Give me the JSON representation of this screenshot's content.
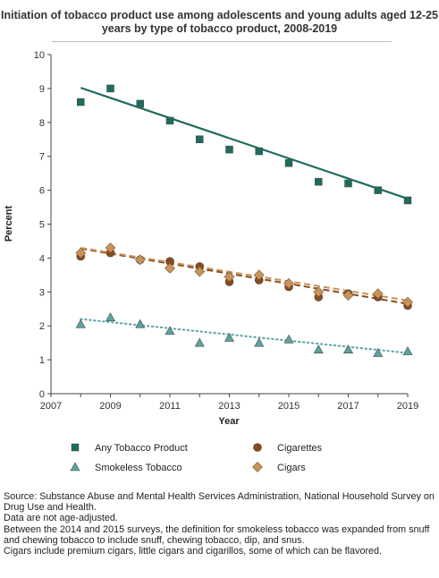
{
  "chart_data": {
    "type": "scatter",
    "title": "Initiation of tobacco product use among adolescents and young adults aged 12-25 years by type of tobacco product, 2008-2019",
    "xlabel": "Year",
    "ylabel": "Percent",
    "xlim": [
      2007,
      2019
    ],
    "ylim": [
      0,
      10
    ],
    "x_ticks": [
      "2007",
      "2009",
      "2011",
      "2013",
      "2015",
      "2017",
      "2019"
    ],
    "y_ticks": [
      "0",
      "1",
      "2",
      "3",
      "4",
      "5",
      "6",
      "7",
      "8",
      "9",
      "10"
    ],
    "x": [
      2008,
      2009,
      2010,
      2011,
      2012,
      2013,
      2014,
      2015,
      2016,
      2017,
      2018,
      2019
    ],
    "legend_placement": "bottom",
    "grid": false,
    "series": [
      {
        "name": "Any Tobacco Product",
        "marker": "square",
        "color": "#1f6b5e",
        "values": [
          8.6,
          9.0,
          8.55,
          8.05,
          7.5,
          7.2,
          7.15,
          6.8,
          6.25,
          6.2,
          6.0,
          5.7
        ],
        "trend": {
          "style": "solid",
          "start": 9.02,
          "end": 5.75
        }
      },
      {
        "name": "Cigarettes",
        "marker": "circle",
        "color": "#8b4a1c",
        "values": [
          4.05,
          4.15,
          3.95,
          3.9,
          3.75,
          3.3,
          3.35,
          3.15,
          2.85,
          2.95,
          2.85,
          2.6
        ],
        "trend": {
          "style": "dashed",
          "start": 4.28,
          "end": 2.65
        }
      },
      {
        "name": "Smokeless Tobacco",
        "marker": "triangle",
        "color": "#5ba3a0",
        "values": [
          2.05,
          2.25,
          2.05,
          1.85,
          1.5,
          1.65,
          1.5,
          1.6,
          1.3,
          1.3,
          1.2,
          1.25
        ],
        "trend": {
          "style": "dotted",
          "start": 2.2,
          "end": 1.2
        }
      },
      {
        "name": "Cigars",
        "marker": "diamond",
        "color": "#c8935a",
        "values": [
          4.15,
          4.3,
          3.95,
          3.7,
          3.6,
          3.45,
          3.5,
          3.25,
          3.0,
          2.9,
          2.95,
          2.7
        ],
        "trend": {
          "style": "dashed",
          "start": 4.3,
          "end": 2.75
        }
      }
    ]
  },
  "footnotes": [
    "Source: Substance Abuse and Mental Health Services Administration, National Household Survey on Drug Use and Health.",
    "Data are not age-adjusted.",
    "Between the 2014 and 2015 surveys, the definition for smokeless tobacco was expanded from snuff and chewing tobacco to include snuff, chewing tobacco, dip, and snus.",
    "Cigars include premium cigars, little cigars and cigarillos, some of which can be flavored."
  ]
}
